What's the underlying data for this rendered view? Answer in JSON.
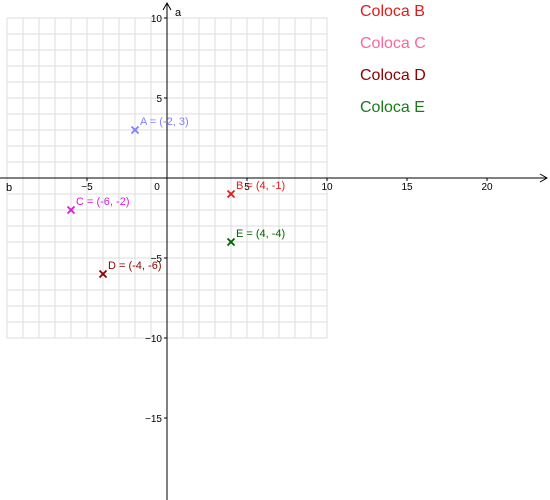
{
  "axes": {
    "x_label": "b",
    "y_label": "a",
    "x_ticks": [
      -5,
      0,
      5,
      10,
      15,
      20
    ],
    "y_ticks": [
      10,
      5,
      -5,
      -10,
      -15
    ],
    "grid_x_range": [
      -10,
      10
    ],
    "grid_y_range": [
      -10,
      10
    ]
  },
  "points": [
    {
      "name": "A",
      "label": "A = (-2, 3)",
      "x": -2,
      "y": 3,
      "color": "#8080ff"
    },
    {
      "name": "B",
      "label": "B = (4, -1)",
      "x": 4,
      "y": -1,
      "color": "#e01c1c"
    },
    {
      "name": "C",
      "label": "C = (-6, -2)",
      "x": -6,
      "y": -2,
      "color": "#d81bd8"
    },
    {
      "name": "D",
      "label": "D = (-4, -6)",
      "x": -4,
      "y": -6,
      "color": "#8b0000"
    },
    {
      "name": "E",
      "label": "E = (4, -4)",
      "x": 4,
      "y": -4,
      "color": "#006400"
    }
  ],
  "buttons": [
    {
      "id": "b",
      "label": "Coloca B",
      "color": "#e01c1c"
    },
    {
      "id": "c",
      "label": "Coloca C",
      "color": "#ff6699"
    },
    {
      "id": "d",
      "label": "Coloca D",
      "color": "#8b0000"
    },
    {
      "id": "e",
      "label": "Coloca E",
      "color": "#1a7a1a"
    }
  ]
}
